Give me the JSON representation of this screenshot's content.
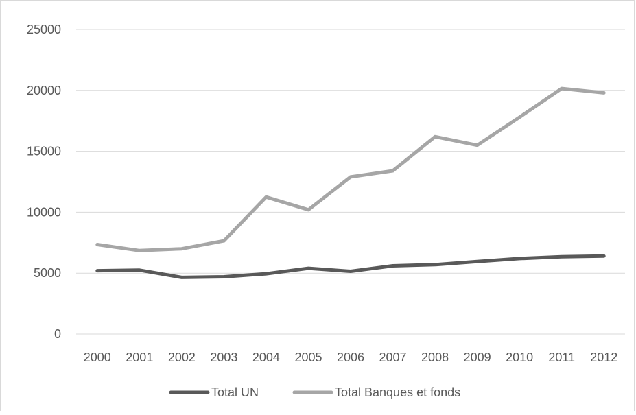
{
  "chart_data": {
    "type": "line",
    "title": "",
    "xlabel": "",
    "ylabel": "",
    "categories": [
      "2000",
      "2001",
      "2002",
      "2003",
      "2004",
      "2005",
      "2006",
      "2007",
      "2008",
      "2009",
      "2010",
      "2011",
      "2012"
    ],
    "ylim": [
      0,
      25000
    ],
    "yticks": [
      0,
      5000,
      10000,
      15000,
      20000,
      25000
    ],
    "grid": true,
    "legend_position": "bottom",
    "series": [
      {
        "name": "Total UN",
        "color": "#595959",
        "values": [
          5200,
          5250,
          4650,
          4700,
          4950,
          5400,
          5150,
          5600,
          5700,
          5950,
          6200,
          6350,
          6400
        ]
      },
      {
        "name": "Total Banques et fonds",
        "color": "#a6a6a6",
        "values": [
          7350,
          6850,
          7000,
          7650,
          11250,
          10200,
          12900,
          13400,
          16200,
          15500,
          17800,
          20150,
          19800
        ]
      }
    ]
  }
}
